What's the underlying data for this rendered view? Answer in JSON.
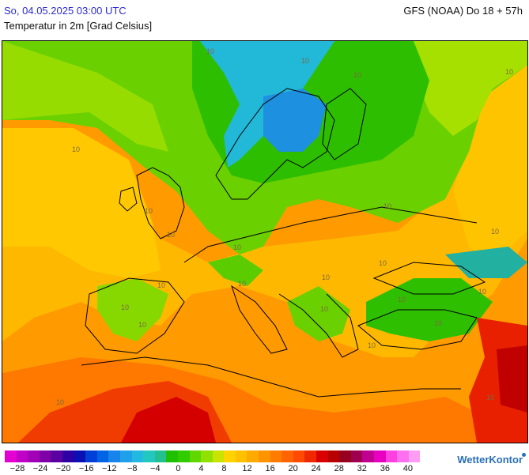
{
  "header": {
    "datetime": "So, 04.05.2025 03:00 UTC",
    "model": "GFS (NOAA) Do 18 + 57h",
    "parameter": "Temperatur in 2m [Grad Celsius]"
  },
  "map": {
    "contour_labels": [
      "10",
      "10",
      "10",
      "10",
      "10",
      "10",
      "10",
      "10",
      "10",
      "10",
      "10",
      "10",
      "10",
      "10",
      "10",
      "10",
      "10",
      "10",
      "10",
      "10",
      "10",
      "10",
      "10"
    ]
  },
  "legend": {
    "tick_labels": [
      "−28",
      "−24",
      "−20",
      "−16",
      "−12",
      "−8",
      "−4",
      "0",
      "4",
      "8",
      "12",
      "16",
      "20",
      "24",
      "28",
      "32",
      "36",
      "40"
    ],
    "colors": [
      "#e400d2",
      "#c000c8",
      "#a100b8",
      "#7f00a8",
      "#5a00a0",
      "#2c00a4",
      "#0a10b4",
      "#0040d8",
      "#0064e6",
      "#1684ea",
      "#1ea0ea",
      "#22b8e0",
      "#22c8c0",
      "#22c090",
      "#1ec000",
      "#30cc00",
      "#60d800",
      "#90e000",
      "#c8e400",
      "#ffd200",
      "#ffc000",
      "#ffaa00",
      "#ff9400",
      "#ff7c00",
      "#ff6400",
      "#ff4a00",
      "#f02800",
      "#d80000",
      "#b80000",
      "#980020",
      "#a00050",
      "#c00090",
      "#e800c0",
      "#ff40e0",
      "#ff70f0",
      "#ff9cf4"
    ]
  },
  "brand": {
    "name": "WetterKontor"
  }
}
